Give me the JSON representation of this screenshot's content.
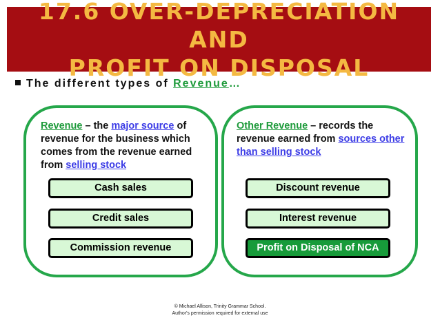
{
  "title": {
    "line1": "17.6 OVER-DEPRECIATION AND",
    "line2": "PROFIT ON DISPOSAL"
  },
  "bullet": {
    "prefix": "The different types of ",
    "highlight": "Revenue",
    "suffix": "…"
  },
  "left_panel": {
    "term": "Revenue",
    "text1": " – the ",
    "link1": "major source",
    "text2": " of revenue for the business which comes from the revenue earned from ",
    "link2": "selling stock",
    "items": [
      "Cash sales",
      "Credit sales",
      "Commission revenue"
    ]
  },
  "right_panel": {
    "term": "Other Revenue",
    "text1": " – records the revenue earned from ",
    "link1": "sources other than selling stock",
    "items": [
      "Discount revenue",
      "Interest revenue",
      "Profit on Disposal of NCA"
    ]
  },
  "footer": {
    "line1": "© Michael Allison, Trinity Grammar School.",
    "line2": "Author's permission required for external use"
  },
  "colors": {
    "title_bg": "#a50d12",
    "title_text": "#f4b942",
    "panel_border": "#25a74a",
    "box_bg": "#d8f8d6",
    "box_dark_bg": "#179b3a",
    "link_blue": "#3c3ce6",
    "term_green": "#1d9a3a"
  }
}
